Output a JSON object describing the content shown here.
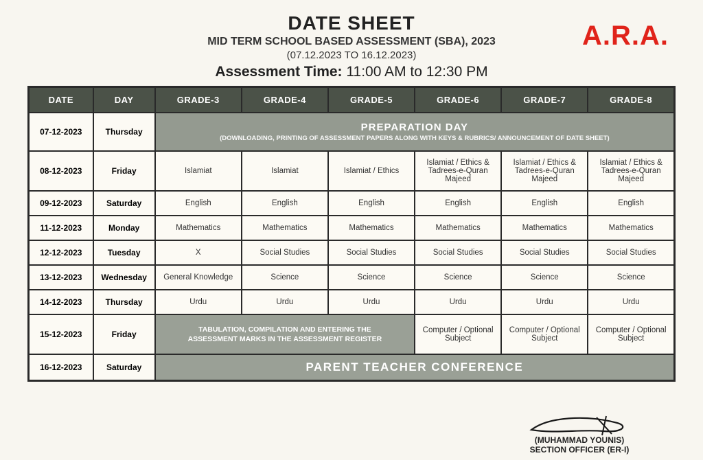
{
  "watermark": "A.R.A.",
  "header": {
    "title": "DATE SHEET",
    "subtitle": "MID TERM SCHOOL BASED ASSESSMENT (SBA), 2023",
    "date_range": "(07.12.2023 TO 16.12.2023)",
    "timing_label": "Assessment Time:",
    "timing_value": "11:00 AM to 12:30 PM"
  },
  "columns": [
    "DATE",
    "DAY",
    "GRADE-3",
    "GRADE-4",
    "GRADE-5",
    "GRADE-6",
    "GRADE-7",
    "GRADE-8"
  ],
  "prep_row": {
    "date": "07-12-2023",
    "day": "Thursday",
    "banner_title": "PREPARATION DAY",
    "banner_sub": "(DOWNLOADING, PRINTING OF ASSESSMENT PAPERS ALONG WITH KEYS & RUBRICS/ ANNOUNCEMENT OF DATE SHEET)"
  },
  "rows": [
    {
      "date": "08-12-2023",
      "day": "Friday",
      "cells": [
        "Islamiat",
        "Islamiat",
        "Islamiat / Ethics",
        "Islamiat / Ethics & Tadrees-e-Quran Majeed",
        "Islamiat / Ethics & Tadrees-e-Quran Majeed",
        "Islamiat / Ethics & Tadrees-e-Quran Majeed"
      ],
      "tall": true
    },
    {
      "date": "09-12-2023",
      "day": "Saturday",
      "cells": [
        "English",
        "English",
        "English",
        "English",
        "English",
        "English"
      ]
    },
    {
      "date": "11-12-2023",
      "day": "Monday",
      "cells": [
        "Mathematics",
        "Mathematics",
        "Mathematics",
        "Mathematics",
        "Mathematics",
        "Mathematics"
      ]
    },
    {
      "date": "12-12-2023",
      "day": "Tuesday",
      "cells": [
        "X",
        "Social Studies",
        "Social Studies",
        "Social Studies",
        "Social Studies",
        "Social Studies"
      ]
    },
    {
      "date": "13-12-2023",
      "day": "Wednesday",
      "cells": [
        "General Knowledge",
        "Science",
        "Science",
        "Science",
        "Science",
        "Science"
      ]
    },
    {
      "date": "14-12-2023",
      "day": "Thursday",
      "cells": [
        "Urdu",
        "Urdu",
        "Urdu",
        "Urdu",
        "Urdu",
        "Urdu"
      ]
    }
  ],
  "tab_row": {
    "date": "15-12-2023",
    "day": "Friday",
    "banner_line1": "TABULATION, COMPILATION AND ENTERING THE",
    "banner_line2": "ASSESSMENT MARKS IN THE ASSESSMENT REGISTER",
    "cells": [
      "Computer / Optional Subject",
      "Computer / Optional Subject",
      "Computer / Optional Subject"
    ]
  },
  "ptc_row": {
    "date": "16-12-2023",
    "day": "Saturday",
    "banner": "PARENT TEACHER CONFERENCE"
  },
  "signature": {
    "name": "(MUHAMMAD YOUNIS)",
    "title": "SECTION OFFICER (ER-I)"
  },
  "style": {
    "header_bg": "#4b5248",
    "banner_bg": "#949a90",
    "cell_bg": "#fcfaf4",
    "border": "#2a2a2a",
    "watermark_color": "#e0231a",
    "body_bg": "#f8f6f0"
  }
}
